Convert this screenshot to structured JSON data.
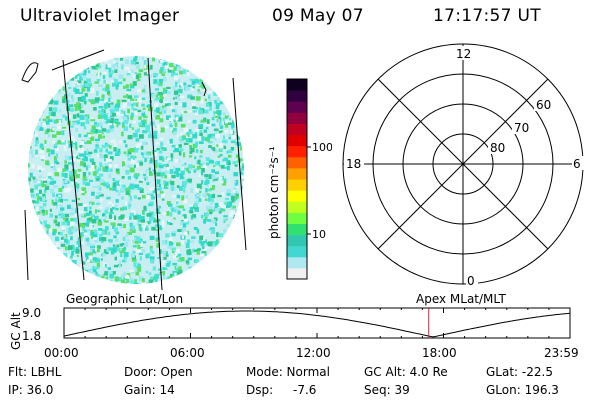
{
  "header": {
    "instrument": "Ultraviolet Imager",
    "date": "09 May 07",
    "time": "17:17:57 UT"
  },
  "colorbar": {
    "unit_label": "photon cm⁻²s⁻¹",
    "ticks": [
      "100",
      "10"
    ],
    "colors": [
      "#f0f0f0",
      "#b0e8f0",
      "#40d8d0",
      "#30c8b0",
      "#30e070",
      "#70ff40",
      "#c0ff20",
      "#ffff00",
      "#ffd000",
      "#ffa000",
      "#ff6000",
      "#ff2000",
      "#e00000",
      "#c00020",
      "#900040",
      "#600050",
      "#300040",
      "#100020"
    ]
  },
  "polar_plot": {
    "labels": {
      "top": "12",
      "left": "18",
      "right": "6",
      "bottom": "0"
    },
    "lat_labels": [
      "60",
      "70",
      "80"
    ]
  },
  "timeline": {
    "left_label": "Geographic Lat/Lon",
    "right_label": "Apex MLat/MLT",
    "y_axis_title": "GC Alt",
    "y_ticks": [
      "9.0",
      "1.8"
    ],
    "x_ticks": [
      "00:00",
      "06:00",
      "12:00",
      "18:00",
      "23:59"
    ],
    "current_time_hours": 17.3
  },
  "info": {
    "filter": "Flt: LBHL",
    "ip": "IP: 36.0",
    "door": "Door: Open",
    "gain": "Gain: 14",
    "mode": "Mode: Normal",
    "dsp_label": "Dsp:",
    "dsp_value": "-7.6",
    "gc_alt": "GC Alt: 4.0 Re",
    "seq": "Seq: 39",
    "glat": "GLat: -22.5",
    "glon": "GLon: 196.3"
  }
}
